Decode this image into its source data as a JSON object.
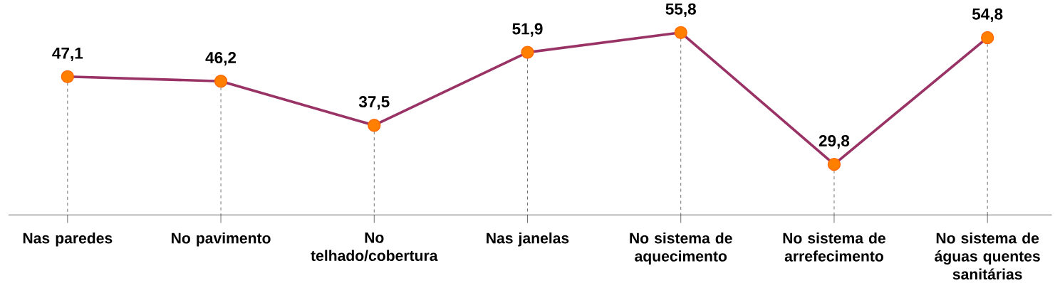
{
  "chart_data": {
    "type": "line",
    "categories": [
      "Nas paredes",
      "No pavimento",
      "No telhado/cobertura",
      "Nas janelas",
      "No sistema de aquecimento",
      "No sistema de arrefecimento",
      "No sistema de águas quentes sanitárias"
    ],
    "series": [
      {
        "color": "#993366",
        "values": [
          47.1,
          46.2,
          37.5,
          51.9,
          55.8,
          29.8,
          54.8
        ],
        "value_labels": [
          "47,1",
          "46,2",
          "37,5",
          "51,9",
          "55,8",
          "29,8",
          "54,8"
        ]
      }
    ],
    "marker": "circle",
    "line_style": "solid",
    "grid": "x"
  }
}
